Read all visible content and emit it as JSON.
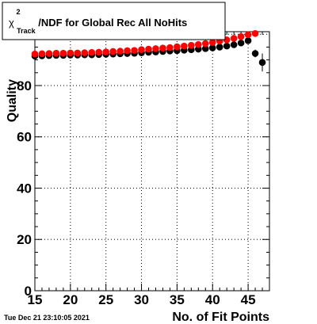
{
  "title": {
    "chi_symbol": "χ",
    "superscript": "2",
    "subscript": "Track",
    "rest": "/NDF for Global Rec All NoHits"
  },
  "footer_timestamp": "Tue Dec 21 23:10:05 2021",
  "chart_data": {
    "type": "scatter",
    "xlabel": "No. of Fit Points",
    "ylabel": "Quality",
    "xlim": [
      15,
      48
    ],
    "ylim": [
      0,
      101
    ],
    "x_ticks": [
      15,
      20,
      25,
      30,
      35,
      40,
      45
    ],
    "y_ticks": [
      0,
      20,
      40,
      60,
      80
    ],
    "grid": true,
    "series": [
      {
        "color": "#000000",
        "x": [
          15,
          16,
          17,
          18,
          19,
          20,
          21,
          22,
          23,
          24,
          25,
          26,
          27,
          28,
          29,
          30,
          31,
          32,
          33,
          34,
          35,
          36,
          37,
          38,
          39,
          40,
          41,
          42,
          43,
          44,
          45,
          46,
          47
        ],
        "y": [
          91.5,
          91.6,
          91.7,
          91.8,
          91.8,
          91.9,
          91.9,
          92.0,
          92.0,
          92.1,
          92.2,
          92.3,
          92.4,
          92.5,
          92.6,
          92.8,
          93.0,
          93.1,
          93.3,
          93.5,
          93.6,
          93.8,
          94.0,
          94.2,
          94.4,
          94.7,
          95.0,
          95.4,
          95.9,
          96.6,
          97.5,
          92.5,
          89.0
        ],
        "yerr": [
          0.4,
          0.4,
          0.4,
          0.4,
          0.4,
          0.4,
          0.4,
          0.4,
          0.4,
          0.4,
          0.4,
          0.4,
          0.4,
          0.4,
          0.4,
          0.4,
          0.4,
          0.4,
          0.4,
          0.4,
          0.4,
          0.4,
          0.4,
          0.4,
          0.4,
          0.4,
          0.4,
          0.5,
          0.5,
          0.6,
          0.8,
          1.5,
          3.5
        ]
      },
      {
        "color": "#ff0000",
        "x": [
          15,
          16,
          17,
          18,
          19,
          20,
          21,
          22,
          23,
          24,
          25,
          26,
          27,
          28,
          29,
          30,
          31,
          32,
          33,
          34,
          35,
          36,
          37,
          38,
          39,
          40,
          41,
          42,
          43,
          44,
          45,
          46
        ],
        "y": [
          92.3,
          92.4,
          92.5,
          92.6,
          92.6,
          92.7,
          92.7,
          92.8,
          92.9,
          93.0,
          93.1,
          93.3,
          93.4,
          93.6,
          93.7,
          94.0,
          94.2,
          94.4,
          94.6,
          94.8,
          95.1,
          95.4,
          95.7,
          96.0,
          96.4,
          96.8,
          97.3,
          97.8,
          98.4,
          99.1,
          99.8,
          100.3
        ],
        "yerr": [
          0.3,
          0.3,
          0.3,
          0.3,
          0.3,
          0.3,
          0.3,
          0.3,
          0.3,
          0.3,
          0.3,
          0.3,
          0.3,
          0.3,
          0.3,
          0.3,
          0.3,
          0.3,
          0.3,
          0.3,
          0.3,
          0.3,
          0.3,
          0.3,
          0.3,
          0.3,
          0.3,
          0.3,
          0.3,
          0.3,
          0.4,
          0.5
        ]
      }
    ]
  }
}
